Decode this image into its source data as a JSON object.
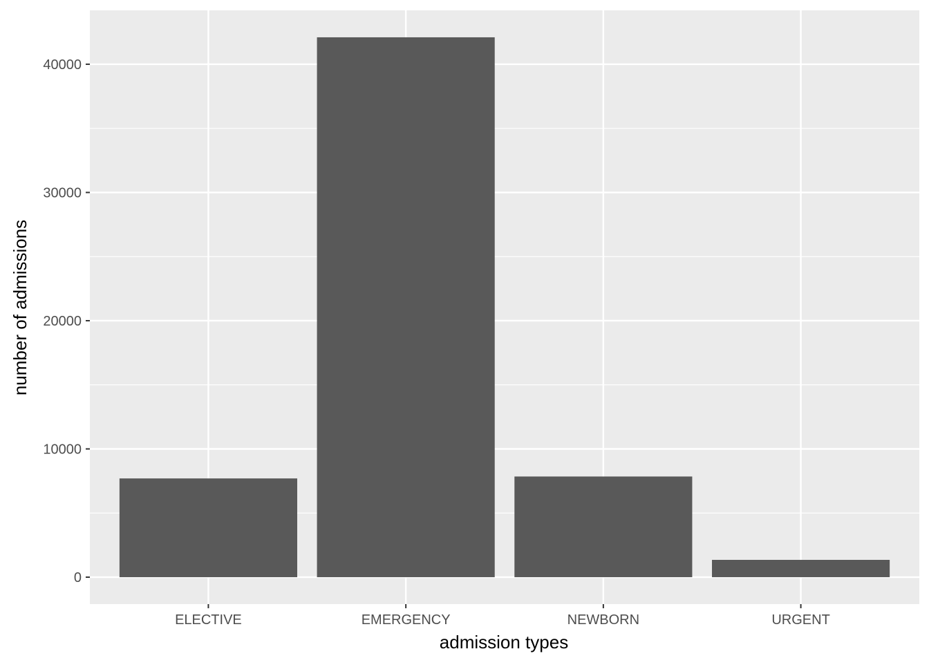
{
  "chart_data": {
    "type": "bar",
    "title": "",
    "xlabel": "admission types",
    "ylabel": "number of admissions",
    "categories": [
      "ELECTIVE",
      "EMERGENCY",
      "NEWBORN",
      "URGENT"
    ],
    "values": [
      7700,
      42100,
      7850,
      1350
    ],
    "ylim": [
      -2100,
      44200
    ],
    "yticks": [
      0,
      10000,
      20000,
      30000,
      40000
    ],
    "ytick_labels": [
      "0",
      "10000",
      "20000",
      "30000",
      "40000"
    ],
    "grid": true,
    "legend": "none",
    "colors": {
      "bar": "#595959",
      "panel": "#ebebeb",
      "grid": "#ffffff",
      "tick_text": "#4d4d4d",
      "axis_title": "#000000"
    }
  }
}
